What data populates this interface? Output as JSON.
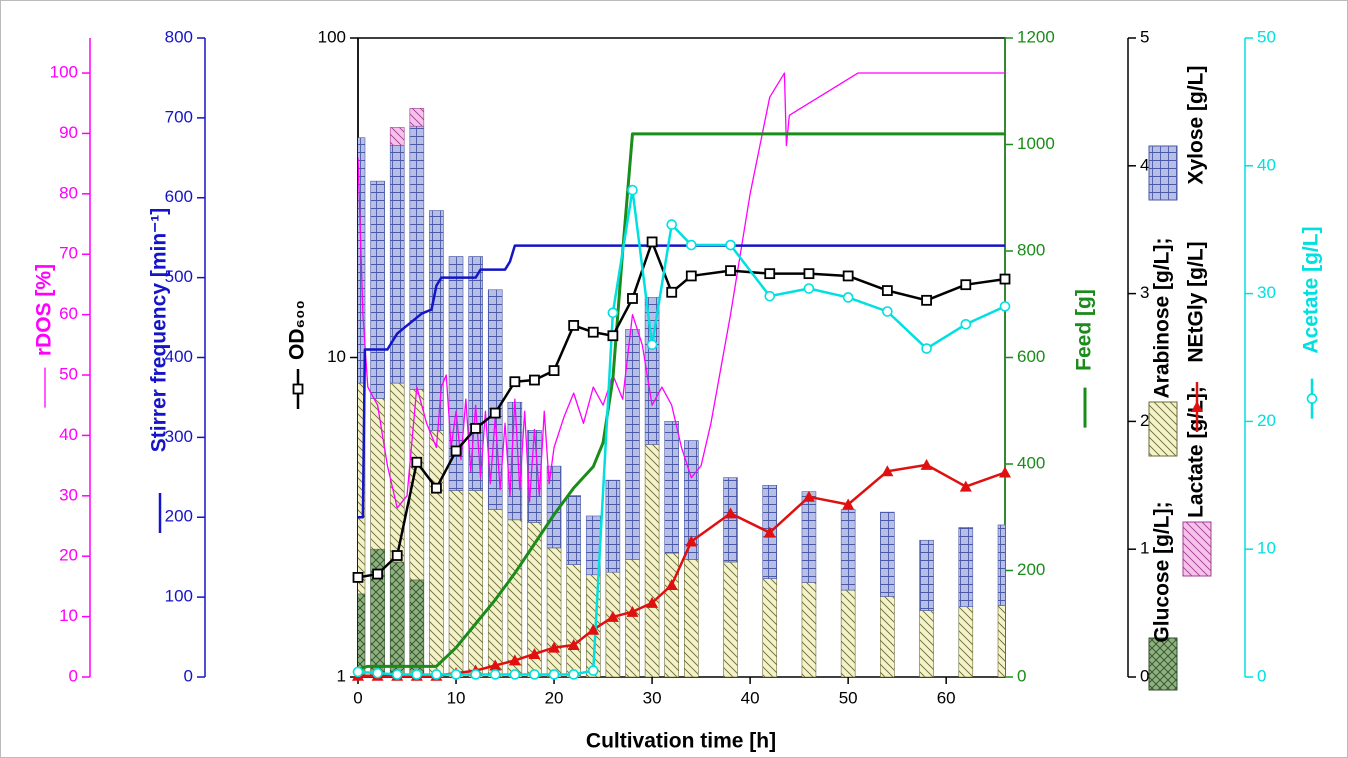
{
  "chart_data": {
    "type": "bar-line",
    "xlabel": "Cultivation time [h]",
    "xlim": [
      0,
      66
    ],
    "xticks": [
      0,
      10,
      20,
      30,
      40,
      50,
      60
    ],
    "x": [
      0,
      2,
      4,
      6,
      8,
      10,
      12,
      14,
      16,
      18,
      20,
      22,
      24,
      26,
      28,
      30,
      32,
      34,
      38,
      42,
      46,
      50,
      54,
      58,
      62,
      66
    ],
    "axes": [
      {
        "label": "rDOS [%]",
        "color": "#ff00ff",
        "lim": [
          0,
          105.8
        ],
        "ticks": [
          0,
          10,
          20,
          30,
          40,
          50,
          60,
          70,
          80,
          90,
          100
        ]
      },
      {
        "label": "Stirrer frequency [min⁻¹]",
        "color": "#1414c8",
        "lim": [
          0,
          800
        ],
        "ticks": [
          0,
          100,
          200,
          300,
          400,
          500,
          600,
          700,
          800
        ]
      },
      {
        "label": "OD₆₀₀",
        "color": "#000000",
        "lim": [
          1,
          100
        ],
        "ticks": [
          1,
          10,
          100
        ],
        "log": true
      },
      {
        "label": "Feed [g]",
        "color": "#1a8c1a",
        "lim": [
          0,
          1200
        ],
        "ticks": [
          0,
          200,
          400,
          600,
          800,
          1000,
          1200
        ]
      },
      {
        "color": "#000000",
        "lim": [
          0,
          5
        ],
        "ticks": [
          0,
          1,
          2,
          3,
          4,
          5
        ]
      },
      {
        "label": "Acetate [g/L]",
        "color": "#00e0e0",
        "lim": [
          0,
          50
        ],
        "ticks": [
          0,
          10,
          20,
          30,
          40,
          50
        ]
      }
    ],
    "bars": [
      {
        "name": "Glucose [g/L];",
        "color": "#8fb07f",
        "hatch": "cross",
        "hatch_color": "#2f4f2a",
        "values": [
          0.65,
          1.0,
          0.9,
          0.76,
          0,
          0,
          0,
          0,
          0,
          0,
          0,
          0,
          0,
          0,
          0,
          0,
          0,
          0,
          0,
          0,
          0,
          0,
          0,
          0,
          0,
          0
        ]
      },
      {
        "name": "Arabinose [g/L];",
        "color": "#f3f2c8",
        "hatch": "diag",
        "hatch_color": "#6b6b3a",
        "values": [
          1.65,
          1.18,
          1.4,
          1.49,
          1.93,
          1.46,
          1.46,
          1.31,
          1.23,
          1.21,
          1.01,
          0.88,
          0.8,
          0.82,
          0.92,
          1.82,
          0.97,
          0.92,
          0.9,
          0.77,
          0.74,
          0.68,
          0.63,
          0.52,
          0.55,
          0.56
        ]
      },
      {
        "name": "Xylose [g/L]",
        "color": "#b7bfe6",
        "hatch": "grid",
        "hatch_color": "#4a5aa8",
        "values": [
          1.92,
          1.7,
          1.86,
          2.06,
          1.72,
          1.83,
          1.83,
          1.72,
          0.92,
          0.72,
          0.64,
          0.54,
          0.46,
          0.72,
          1.8,
          1.15,
          1.03,
          0.93,
          0.66,
          0.73,
          0.71,
          0.63,
          0.66,
          0.55,
          0.62,
          0.63
        ]
      },
      {
        "name": "Lactate [g/L];",
        "color": "#f6c2ec",
        "hatch": "diag",
        "hatch_color": "#a04090",
        "values": [
          0,
          0,
          0.14,
          0.14,
          0,
          0,
          0,
          0,
          0,
          0,
          0,
          0,
          0,
          0,
          0,
          0,
          0,
          0,
          0,
          0,
          0,
          0,
          0,
          0,
          0,
          0
        ]
      }
    ],
    "lines": [
      {
        "axis": 0,
        "color": "#ff00ff",
        "width": 1.3,
        "x": [
          0,
          0.5,
          1,
          2,
          3,
          4,
          5,
          6,
          7,
          8,
          8.5,
          9,
          9.5,
          10,
          10.5,
          11,
          11.5,
          12,
          12.5,
          13,
          13.5,
          14,
          14.5,
          15,
          15.5,
          16,
          16.5,
          17,
          17.5,
          18,
          18.5,
          19,
          19.5,
          20,
          21,
          22,
          23,
          24,
          25,
          26,
          27,
          28,
          29,
          30,
          31,
          32,
          33,
          34,
          35,
          36,
          38,
          40,
          42,
          43.5,
          43.7,
          44,
          46,
          48,
          50,
          51,
          66
        ],
        "values": [
          86,
          60,
          48,
          45,
          35,
          28,
          30,
          48,
          42,
          38,
          48,
          50,
          38,
          44,
          36,
          46,
          34,
          45,
          33,
          44,
          32,
          43,
          31,
          42,
          30,
          46,
          31,
          44,
          29,
          41,
          30,
          44,
          32,
          38,
          43,
          47,
          42,
          48,
          45,
          50,
          46,
          60,
          55,
          45,
          48,
          45,
          38,
          33,
          35,
          42,
          60,
          80,
          96,
          100,
          88,
          93,
          95,
          97,
          99,
          100,
          100
        ]
      },
      {
        "axis": 1,
        "color": "#1414c8",
        "width": 2.5,
        "x": [
          0,
          0.5,
          0.7,
          3,
          3.5,
          4,
          5,
          6,
          6.5,
          7.5,
          8,
          8.5,
          12,
          12.5,
          15,
          15.5,
          16,
          66
        ],
        "values": [
          200,
          200,
          410,
          410,
          420,
          430,
          440,
          450,
          455,
          460,
          490,
          500,
          500,
          510,
          510,
          520,
          540,
          540
        ]
      },
      {
        "axis": 3,
        "color": "#1a8c1a",
        "width": 3,
        "x": [
          0,
          1,
          8,
          10,
          12,
          14,
          16,
          18,
          20,
          22,
          24,
          25,
          26,
          27,
          28,
          40,
          66
        ],
        "values": [
          15,
          20,
          20,
          55,
          100,
          145,
          195,
          250,
          305,
          355,
          395,
          440,
          560,
          800,
          1020,
          1020,
          1020
        ]
      },
      {
        "axis": 2,
        "color": "#000000",
        "width": 2.5,
        "marker": "square",
        "values": [
          2.05,
          2.1,
          2.4,
          4.7,
          3.9,
          5.1,
          6.0,
          6.7,
          8.4,
          8.5,
          9.1,
          12.6,
          12.0,
          11.7,
          15.3,
          23.0,
          16.0,
          18.0,
          18.7,
          18.3,
          18.3,
          18.0,
          16.2,
          15.1,
          16.9,
          17.6
        ]
      },
      {
        "axis": 4,
        "name": "NEtGly [g/L]",
        "color": "#e01010",
        "width": 2.5,
        "marker": "triangle",
        "values": [
          0.01,
          0.01,
          0.01,
          0.01,
          0.01,
          0.03,
          0.05,
          0.09,
          0.13,
          0.18,
          0.23,
          0.25,
          0.37,
          0.47,
          0.51,
          0.58,
          0.72,
          1.06,
          1.28,
          1.13,
          1.41,
          1.35,
          1.61,
          1.66,
          1.49,
          1.6
        ]
      },
      {
        "axis": 5,
        "color": "#00e0e0",
        "width": 2.5,
        "marker": "circle",
        "values": [
          0.4,
          0.3,
          0.2,
          0.2,
          0.2,
          0.2,
          0.2,
          0.2,
          0.2,
          0.2,
          0.2,
          0.2,
          0.5,
          28.5,
          38.1,
          26.0,
          35.4,
          33.8,
          33.8,
          29.8,
          30.4,
          29.7,
          28.6,
          25.7,
          27.6,
          29.0
        ]
      }
    ]
  }
}
